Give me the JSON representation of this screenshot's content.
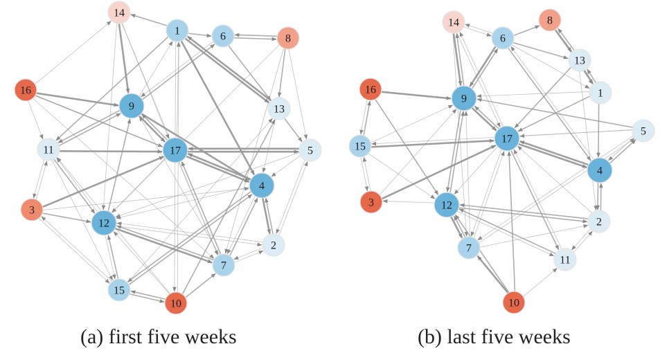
{
  "panels": [
    {
      "caption": "(a)  first five weeks",
      "nodes": [
        {
          "id": "1",
          "level": "light-blue"
        },
        {
          "id": "2",
          "level": "pale-blue"
        },
        {
          "id": "3",
          "level": "orange"
        },
        {
          "id": "4",
          "level": "blue"
        },
        {
          "id": "5",
          "level": "pale-blue"
        },
        {
          "id": "6",
          "level": "light-blue"
        },
        {
          "id": "7",
          "level": "light-blue"
        },
        {
          "id": "8",
          "level": "salmon"
        },
        {
          "id": "9",
          "level": "blue"
        },
        {
          "id": "10",
          "level": "red-orange"
        },
        {
          "id": "11",
          "level": "pale-blue"
        },
        {
          "id": "12",
          "level": "blue"
        },
        {
          "id": "13",
          "level": "pale-blue"
        },
        {
          "id": "14",
          "level": "pale-salmon"
        },
        {
          "id": "15",
          "level": "light-blue"
        },
        {
          "id": "16",
          "level": "red-orange"
        },
        {
          "id": "17",
          "level": "blue"
        }
      ],
      "edges": [
        [
          "14",
          "9",
          3
        ],
        [
          "14",
          "12",
          1
        ],
        [
          "14",
          "7",
          1
        ],
        [
          "14",
          "17",
          1
        ],
        [
          "1",
          "14",
          2
        ],
        [
          "1",
          "6",
          2
        ],
        [
          "1",
          "11",
          2
        ],
        [
          "1",
          "13",
          3
        ],
        [
          "1",
          "4",
          3
        ],
        [
          "1",
          "10",
          1
        ],
        [
          "6",
          "8",
          2
        ],
        [
          "8",
          "6",
          2
        ],
        [
          "6",
          "13",
          2
        ],
        [
          "6",
          "9",
          1
        ],
        [
          "8",
          "13",
          2
        ],
        [
          "8",
          "7",
          1
        ],
        [
          "8",
          "12",
          1
        ],
        [
          "8",
          "5",
          1
        ],
        [
          "13",
          "1",
          3
        ],
        [
          "13",
          "5",
          2
        ],
        [
          "13",
          "4",
          1
        ],
        [
          "16",
          "9",
          3
        ],
        [
          "16",
          "17",
          2
        ],
        [
          "16",
          "11",
          1
        ],
        [
          "16",
          "14",
          1
        ],
        [
          "16",
          "7",
          1
        ],
        [
          "16",
          "4",
          1
        ],
        [
          "9",
          "11",
          2
        ],
        [
          "9",
          "17",
          3
        ],
        [
          "9",
          "4",
          3
        ],
        [
          "9",
          "6",
          2
        ],
        [
          "9",
          "1",
          1
        ],
        [
          "11",
          "17",
          3
        ],
        [
          "11",
          "9",
          2
        ],
        [
          "11",
          "12",
          2
        ],
        [
          "11",
          "3",
          1
        ],
        [
          "11",
          "15",
          1
        ],
        [
          "17",
          "5",
          3
        ],
        [
          "5",
          "17",
          3
        ],
        [
          "17",
          "4",
          3
        ],
        [
          "17",
          "9",
          2
        ],
        [
          "17",
          "12",
          1
        ],
        [
          "17",
          "7",
          1
        ],
        [
          "17",
          "1",
          1
        ],
        [
          "5",
          "4",
          1
        ],
        [
          "5",
          "12",
          1
        ],
        [
          "5",
          "2",
          1
        ],
        [
          "4",
          "17",
          3
        ],
        [
          "4",
          "2",
          3
        ],
        [
          "2",
          "4",
          2
        ],
        [
          "4",
          "12",
          1
        ],
        [
          "4",
          "15",
          2
        ],
        [
          "4",
          "7",
          1
        ],
        [
          "3",
          "12",
          2
        ],
        [
          "3",
          "17",
          3
        ],
        [
          "3",
          "11",
          1
        ],
        [
          "3",
          "4",
          1
        ],
        [
          "3",
          "15",
          1
        ],
        [
          "12",
          "7",
          3
        ],
        [
          "7",
          "12",
          2
        ],
        [
          "12",
          "9",
          2
        ],
        [
          "12",
          "15",
          1
        ],
        [
          "12",
          "2",
          1
        ],
        [
          "12",
          "11",
          1
        ],
        [
          "7",
          "17",
          2
        ],
        [
          "7",
          "4",
          2
        ],
        [
          "7",
          "9",
          1
        ],
        [
          "7",
          "2",
          1
        ],
        [
          "2",
          "7",
          1
        ],
        [
          "2",
          "12",
          1
        ],
        [
          "2",
          "5",
          1
        ],
        [
          "15",
          "10",
          2
        ],
        [
          "10",
          "15",
          2
        ],
        [
          "15",
          "12",
          2
        ],
        [
          "15",
          "3",
          1
        ],
        [
          "15",
          "13",
          1
        ],
        [
          "15",
          "4",
          2
        ],
        [
          "10",
          "7",
          2
        ],
        [
          "10",
          "13",
          2
        ],
        [
          "10",
          "12",
          1
        ],
        [
          "10",
          "11",
          1
        ],
        [
          "10",
          "1",
          1
        ]
      ]
    },
    {
      "caption": "(b)  last five weeks",
      "nodes": [
        {
          "id": "1",
          "level": "pale-blue"
        },
        {
          "id": "2",
          "level": "pale-blue"
        },
        {
          "id": "3",
          "level": "red-orange"
        },
        {
          "id": "4",
          "level": "blue"
        },
        {
          "id": "5",
          "level": "pale-blue"
        },
        {
          "id": "6",
          "level": "light-blue"
        },
        {
          "id": "7",
          "level": "light-blue"
        },
        {
          "id": "8",
          "level": "salmon"
        },
        {
          "id": "9",
          "level": "blue"
        },
        {
          "id": "10",
          "level": "red-orange"
        },
        {
          "id": "11",
          "level": "pale-blue"
        },
        {
          "id": "12",
          "level": "blue"
        },
        {
          "id": "13",
          "level": "pale-blue"
        },
        {
          "id": "14",
          "level": "pale-salmon"
        },
        {
          "id": "15",
          "level": "light-blue"
        },
        {
          "id": "16",
          "level": "red-orange"
        },
        {
          "id": "17",
          "level": "blue"
        }
      ],
      "edges": [
        [
          "14",
          "9",
          3
        ],
        [
          "14",
          "6",
          1
        ],
        [
          "14",
          "17",
          1
        ],
        [
          "14",
          "7",
          1
        ],
        [
          "6",
          "14",
          1
        ],
        [
          "6",
          "8",
          2
        ],
        [
          "6",
          "9",
          3
        ],
        [
          "6",
          "13",
          2
        ],
        [
          "6",
          "4",
          2
        ],
        [
          "6",
          "1",
          1
        ],
        [
          "8",
          "13",
          3
        ],
        [
          "13",
          "8",
          2
        ],
        [
          "8",
          "1",
          1
        ],
        [
          "13",
          "1",
          3
        ],
        [
          "1",
          "13",
          2
        ],
        [
          "1",
          "17",
          2
        ],
        [
          "1",
          "4",
          2
        ],
        [
          "1",
          "9",
          1
        ],
        [
          "13",
          "17",
          2
        ],
        [
          "13",
          "2",
          1
        ],
        [
          "16",
          "9",
          3
        ],
        [
          "16",
          "12",
          2
        ],
        [
          "16",
          "15",
          1
        ],
        [
          "15",
          "17",
          3
        ],
        [
          "15",
          "16",
          2
        ],
        [
          "15",
          "9",
          1
        ],
        [
          "15",
          "12",
          1
        ],
        [
          "15",
          "3",
          1
        ],
        [
          "9",
          "17",
          3
        ],
        [
          "17",
          "9",
          2
        ],
        [
          "9",
          "12",
          2
        ],
        [
          "9",
          "14",
          2
        ],
        [
          "9",
          "6",
          2
        ],
        [
          "5",
          "9",
          2
        ],
        [
          "5",
          "17",
          1
        ],
        [
          "5",
          "4",
          1
        ],
        [
          "4",
          "5",
          2
        ],
        [
          "4",
          "17",
          3
        ],
        [
          "17",
          "4",
          3
        ],
        [
          "4",
          "6",
          1
        ],
        [
          "4",
          "2",
          2
        ],
        [
          "2",
          "4",
          2
        ],
        [
          "17",
          "11",
          2
        ],
        [
          "17",
          "7",
          1
        ],
        [
          "17",
          "12",
          1
        ],
        [
          "17",
          "14",
          1
        ],
        [
          "3",
          "17",
          3
        ],
        [
          "3",
          "9",
          1
        ],
        [
          "3",
          "15",
          1
        ],
        [
          "12",
          "3",
          1
        ],
        [
          "12",
          "2",
          2
        ],
        [
          "2",
          "12",
          2
        ],
        [
          "12",
          "7",
          3
        ],
        [
          "7",
          "12",
          2
        ],
        [
          "12",
          "9",
          2
        ],
        [
          "12",
          "11",
          1
        ],
        [
          "7",
          "9",
          1
        ],
        [
          "7",
          "17",
          1
        ],
        [
          "7",
          "2",
          1
        ],
        [
          "7",
          "5",
          1
        ],
        [
          "11",
          "12",
          2
        ],
        [
          "11",
          "2",
          1
        ],
        [
          "11",
          "17",
          1
        ],
        [
          "10",
          "7",
          3
        ],
        [
          "10",
          "12",
          2
        ],
        [
          "10",
          "17",
          2
        ],
        [
          "10",
          "11",
          1
        ],
        [
          "2",
          "17",
          1
        ],
        [
          "2",
          "11",
          1
        ],
        [
          "5",
          "15",
          1
        ],
        [
          "5",
          "7",
          1
        ]
      ]
    }
  ],
  "colors": {
    "blue": "#69b3db",
    "light-blue": "#a9d3ea",
    "pale-blue": "#dcecf5",
    "pale-salmon": "#f8d5cc",
    "salmon": "#f3a08b",
    "orange": "#ef8a6d",
    "red-orange": "#e5694a",
    "node-stroke": "#e4e4e4",
    "edge": "#9a9a9a"
  }
}
